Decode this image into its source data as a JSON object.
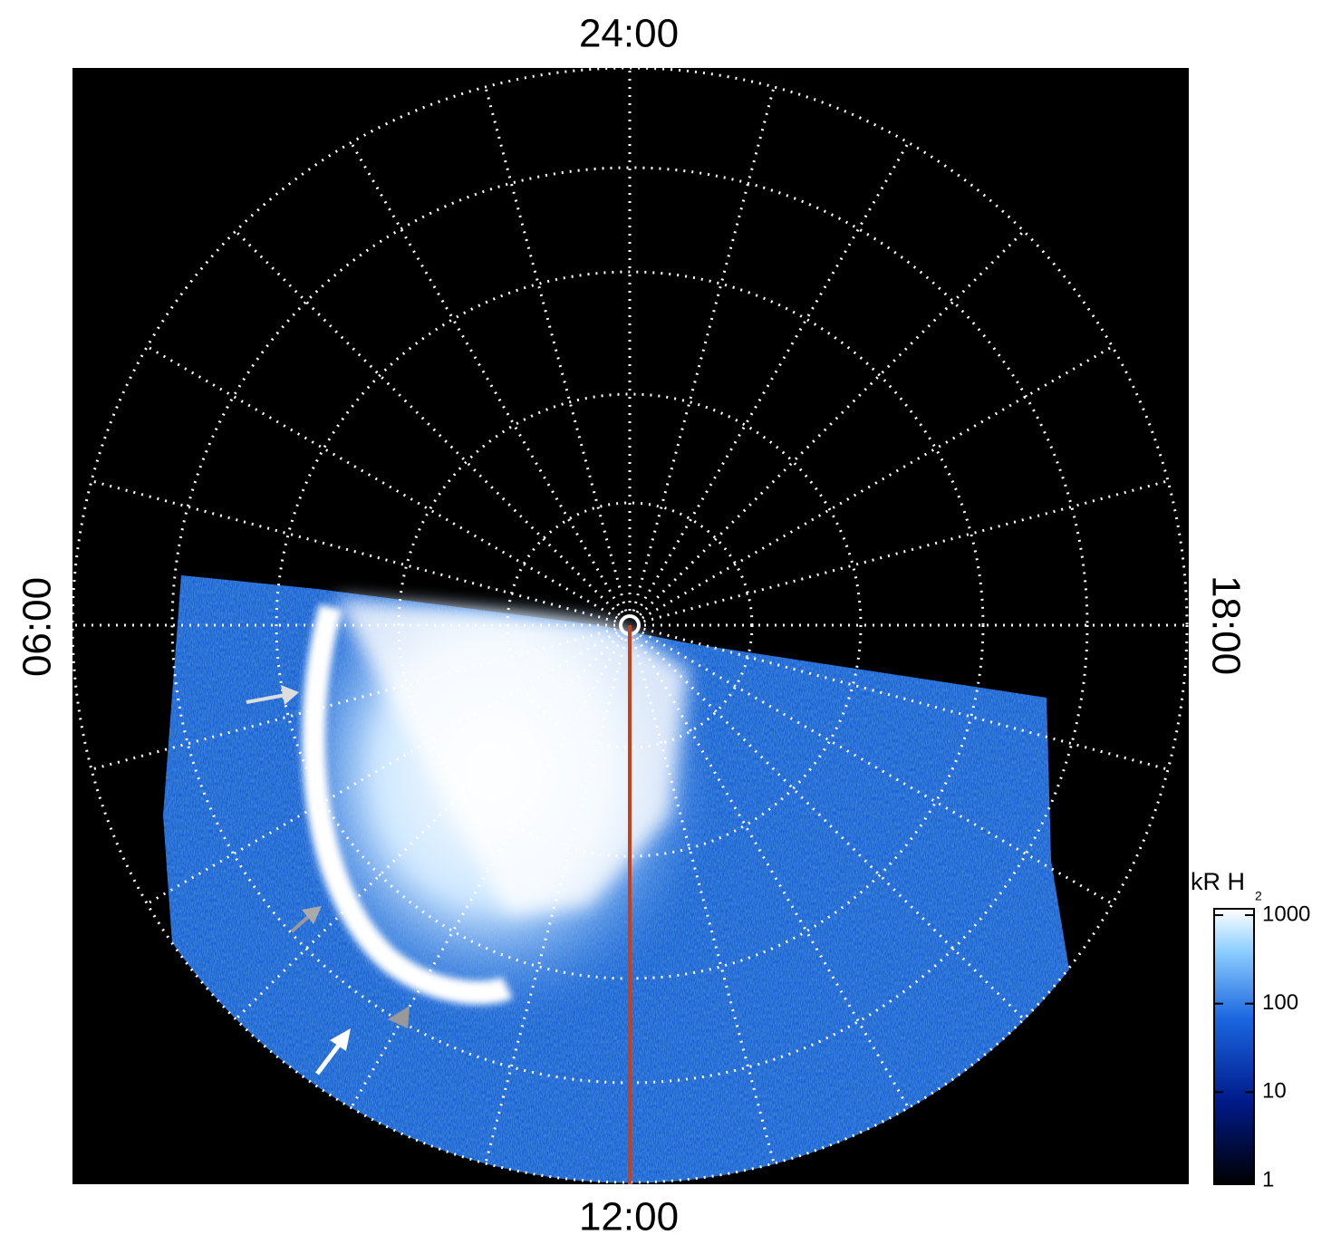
{
  "labels": {
    "top": "24:00",
    "left": "06:00",
    "right": "18:00",
    "bottom": "12:00"
  },
  "colorbar": {
    "title": "kR H",
    "title_subscript": "2",
    "ticks": [
      1,
      10,
      100,
      1000
    ],
    "range": [
      1,
      1000
    ],
    "log_scale": true
  }
}
